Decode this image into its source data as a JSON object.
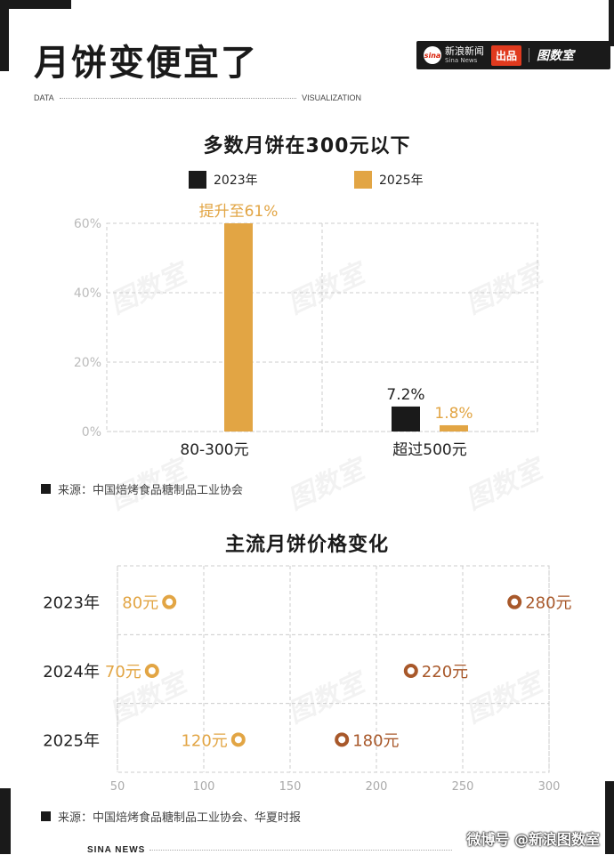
{
  "header": {
    "title": "月饼变便宜了",
    "brand_sina_logo": "sina",
    "brand_sina_cn": "新浪新闻",
    "brand_sina_en": "Sina News",
    "brand_chupin": "出品",
    "brand_tushu": "图数室",
    "data_label": "DATA",
    "visualization_label": "VISUALIZATION"
  },
  "chart_data": [
    {
      "type": "bar",
      "title": "多数月饼在300元以下",
      "categories": [
        "80-300元",
        "超过500元"
      ],
      "series": [
        {
          "name": "2023年",
          "color": "#1a1a1a",
          "values": [
            null,
            7.2
          ],
          "labels": [
            "",
            "7.2%"
          ]
        },
        {
          "name": "2025年",
          "color": "#e2a544",
          "values": [
            61,
            1.8
          ],
          "labels": [
            "提升至61%",
            "1.8%"
          ]
        }
      ],
      "ylim": [
        0,
        60
      ],
      "yticks": [
        "0%",
        "20%",
        "40%",
        "60%"
      ],
      "ytick_values": [
        0,
        20,
        40,
        60
      ],
      "grid": true,
      "legend": "top"
    },
    {
      "type": "dumbbell",
      "title": "主流月饼价格变化",
      "categories": [
        "2023年",
        "2024年",
        "2025年"
      ],
      "low": [
        80,
        70,
        120
      ],
      "high": [
        280,
        220,
        180
      ],
      "low_labels": [
        "80元",
        "70元",
        "120元"
      ],
      "high_labels": [
        "280元",
        "220元",
        "180元"
      ],
      "xlim": [
        50,
        300
      ],
      "xticks": [
        "50",
        "100",
        "150",
        "200",
        "250",
        "300"
      ],
      "xtick_values": [
        50,
        100,
        150,
        200,
        250,
        300
      ],
      "colors": {
        "low": "#e2a544",
        "high": "#a8582a"
      },
      "grid": true
    }
  ],
  "legend": {
    "s2023": "2023年",
    "s2025": "2025年"
  },
  "source1": "来源：中国焙烤食品糖制品工业协会",
  "source2": "来源：中国焙烤食品糖制品工业协会、华夏时报",
  "footer": {
    "sina_news": "SINA NEWS",
    "weibo": "微博号 @新浪图数室"
  }
}
